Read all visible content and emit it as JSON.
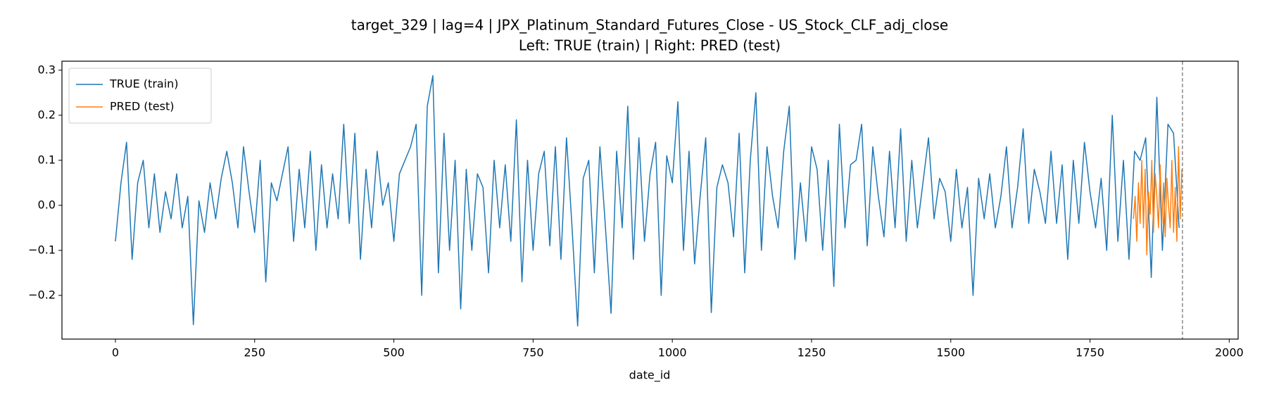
{
  "chart_data": {
    "type": "line",
    "title": "target_329 | lag=4 | JPX_Platinum_Standard_Futures_Close - US_Stock_CLF_adj_close",
    "subtitle": "Left: TRUE (train) | Right: PRED (test)",
    "xlabel": "date_id",
    "xlim": [
      -96,
      2016
    ],
    "ylim": [
      -0.297,
      0.32
    ],
    "xticks": [
      0,
      250,
      500,
      750,
      1000,
      1250,
      1500,
      1750,
      2000
    ],
    "yticks": [
      {
        "value": -0.2,
        "label": "−0.2"
      },
      {
        "value": -0.1,
        "label": "−0.1"
      },
      {
        "value": 0,
        "label": "0.0"
      },
      0.1,
      0.2,
      0.3
    ],
    "grid": false,
    "legend": "upper left",
    "vline": 1916,
    "series": [
      {
        "name": "TRUE (train)",
        "color": "#1f77b4",
        "x": [
          0,
          10,
          20,
          30,
          40,
          50,
          60,
          70,
          80,
          90,
          100,
          110,
          120,
          130,
          140,
          150,
          160,
          170,
          180,
          190,
          200,
          210,
          220,
          230,
          240,
          250,
          260,
          270,
          280,
          290,
          300,
          310,
          320,
          330,
          340,
          350,
          360,
          370,
          380,
          390,
          400,
          410,
          420,
          430,
          440,
          450,
          460,
          470,
          480,
          490,
          500,
          510,
          520,
          530,
          540,
          550,
          560,
          570,
          580,
          590,
          600,
          610,
          620,
          630,
          640,
          650,
          660,
          670,
          680,
          690,
          700,
          710,
          720,
          730,
          740,
          750,
          760,
          770,
          780,
          790,
          800,
          810,
          820,
          830,
          840,
          850,
          860,
          870,
          880,
          890,
          900,
          910,
          920,
          930,
          940,
          950,
          960,
          970,
          980,
          990,
          1000,
          1010,
          1020,
          1030,
          1040,
          1050,
          1060,
          1070,
          1080,
          1090,
          1100,
          1110,
          1120,
          1130,
          1140,
          1150,
          1160,
          1170,
          1180,
          1190,
          1200,
          1210,
          1220,
          1230,
          1240,
          1250,
          1260,
          1270,
          1280,
          1290,
          1300,
          1310,
          1320,
          1330,
          1340,
          1350,
          1360,
          1370,
          1380,
          1390,
          1400,
          1410,
          1420,
          1430,
          1440,
          1450,
          1460,
          1470,
          1480,
          1490,
          1500,
          1510,
          1520,
          1530,
          1540,
          1550,
          1560,
          1570,
          1580,
          1590,
          1600,
          1610,
          1620,
          1630,
          1640,
          1650,
          1660,
          1670,
          1680,
          1690,
          1700,
          1710,
          1720,
          1730,
          1740,
          1750,
          1760,
          1770,
          1780,
          1790,
          1800,
          1810,
          1820,
          1830,
          1840,
          1850,
          1860,
          1870,
          1880,
          1890,
          1900,
          1910
        ],
        "values": [
          -0.08,
          0.05,
          0.14,
          -0.12,
          0.05,
          0.1,
          -0.05,
          0.07,
          -0.06,
          0.03,
          -0.03,
          0.07,
          -0.05,
          0.02,
          -0.265,
          0.01,
          -0.06,
          0.05,
          -0.03,
          0.06,
          0.12,
          0.05,
          -0.05,
          0.13,
          0.03,
          -0.06,
          0.1,
          -0.17,
          0.05,
          0.01,
          0.07,
          0.13,
          -0.08,
          0.08,
          -0.05,
          0.12,
          -0.1,
          0.09,
          -0.05,
          0.07,
          -0.03,
          0.18,
          -0.04,
          0.16,
          -0.12,
          0.08,
          -0.05,
          0.12,
          0.0,
          0.05,
          -0.08,
          0.07,
          0.1,
          0.13,
          0.18,
          -0.2,
          0.22,
          0.288,
          -0.15,
          0.16,
          -0.1,
          0.1,
          -0.23,
          0.08,
          -0.1,
          0.07,
          0.04,
          -0.15,
          0.1,
          -0.05,
          0.09,
          -0.08,
          0.19,
          -0.17,
          0.1,
          -0.1,
          0.07,
          0.12,
          -0.09,
          0.13,
          -0.12,
          0.15,
          -0.05,
          -0.268,
          0.06,
          0.1,
          -0.15,
          0.13,
          -0.05,
          -0.24,
          0.12,
          -0.05,
          0.22,
          -0.12,
          0.15,
          -0.08,
          0.07,
          0.14,
          -0.2,
          0.11,
          0.05,
          0.23,
          -0.1,
          0.12,
          -0.13,
          0.02,
          0.15,
          -0.238,
          0.04,
          0.09,
          0.05,
          -0.07,
          0.16,
          -0.15,
          0.1,
          0.25,
          -0.1,
          0.13,
          0.02,
          -0.05,
          0.12,
          0.22,
          -0.12,
          0.05,
          -0.08,
          0.13,
          0.08,
          -0.1,
          0.1,
          -0.18,
          0.18,
          -0.05,
          0.09,
          0.1,
          0.18,
          -0.09,
          0.13,
          0.02,
          -0.07,
          0.12,
          -0.05,
          0.17,
          -0.08,
          0.1,
          -0.05,
          0.05,
          0.15,
          -0.03,
          0.06,
          0.03,
          -0.08,
          0.08,
          -0.05,
          0.04,
          -0.2,
          0.06,
          -0.03,
          0.07,
          -0.05,
          0.02,
          0.13,
          -0.05,
          0.04,
          0.17,
          -0.04,
          0.08,
          0.03,
          -0.04,
          0.12,
          -0.04,
          0.09,
          -0.12,
          0.1,
          -0.04,
          0.14,
          0.03,
          -0.05,
          0.06,
          -0.1,
          0.2,
          -0.08,
          0.1,
          -0.12,
          0.12,
          0.1,
          0.15,
          -0.16,
          0.24,
          -0.1,
          0.18,
          0.16,
          -0.05
        ]
      },
      {
        "name": "PRED (test)",
        "color": "#ff7f0e",
        "x": [
          1828,
          1831,
          1834,
          1837,
          1840,
          1843,
          1846,
          1849,
          1852,
          1855,
          1858,
          1861,
          1864,
          1867,
          1870,
          1873,
          1876,
          1879,
          1882,
          1885,
          1888,
          1891,
          1894,
          1897,
          1900,
          1903,
          1906,
          1909,
          1912,
          1915
        ],
        "values": [
          -0.03,
          0.02,
          -0.08,
          0.05,
          -0.04,
          0.1,
          -0.05,
          0.08,
          -0.11,
          0.03,
          -0.02,
          0.1,
          -0.06,
          0.07,
          0.02,
          -0.05,
          0.09,
          -0.04,
          0.05,
          -0.07,
          0.06,
          0.0,
          -0.05,
          0.1,
          -0.06,
          0.04,
          -0.08,
          0.13,
          -0.03,
          0.08
        ]
      }
    ]
  }
}
